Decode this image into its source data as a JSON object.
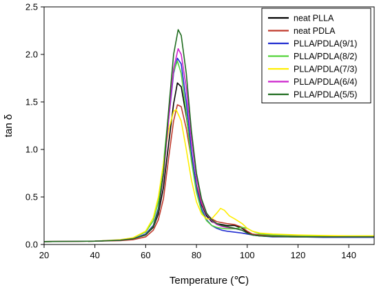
{
  "chart_data": {
    "type": "line",
    "title": "",
    "xlabel": "Temperature (℃)",
    "ylabel": "tan δ",
    "xlim": [
      20,
      150
    ],
    "ylim": [
      0,
      2.5
    ],
    "x_ticks": [
      20,
      40,
      60,
      80,
      100,
      120,
      140
    ],
    "y_ticks": [
      0.0,
      0.5,
      1.0,
      1.5,
      2.0,
      2.5
    ],
    "y_tick_labels": [
      "0.0",
      "0.5",
      "1.0",
      "1.5",
      "2.0",
      "2.5"
    ],
    "grid": false,
    "legend_position": "top-right",
    "series": [
      {
        "name": "neat PLLA",
        "color": "#000000",
        "points": [
          [
            20,
            0.03
          ],
          [
            40,
            0.035
          ],
          [
            50,
            0.045
          ],
          [
            55,
            0.06
          ],
          [
            60,
            0.1
          ],
          [
            63,
            0.18
          ],
          [
            65,
            0.32
          ],
          [
            67,
            0.6
          ],
          [
            69,
            1.05
          ],
          [
            71,
            1.48
          ],
          [
            72.5,
            1.7
          ],
          [
            74,
            1.66
          ],
          [
            76,
            1.35
          ],
          [
            78,
            0.95
          ],
          [
            80,
            0.62
          ],
          [
            82,
            0.42
          ],
          [
            84,
            0.3
          ],
          [
            86,
            0.24
          ],
          [
            88,
            0.22
          ],
          [
            90,
            0.21
          ],
          [
            92,
            0.2
          ],
          [
            95,
            0.2
          ],
          [
            98,
            0.17
          ],
          [
            100,
            0.13
          ],
          [
            102,
            0.1
          ],
          [
            105,
            0.09
          ],
          [
            110,
            0.085
          ],
          [
            120,
            0.08
          ],
          [
            130,
            0.08
          ],
          [
            140,
            0.08
          ],
          [
            150,
            0.08
          ]
        ]
      },
      {
        "name": "neat PDLA",
        "color": "#c0392b",
        "points": [
          [
            20,
            0.03
          ],
          [
            40,
            0.035
          ],
          [
            50,
            0.04
          ],
          [
            55,
            0.05
          ],
          [
            60,
            0.08
          ],
          [
            63,
            0.15
          ],
          [
            65,
            0.26
          ],
          [
            67,
            0.48
          ],
          [
            69,
            0.9
          ],
          [
            71,
            1.3
          ],
          [
            72.5,
            1.47
          ],
          [
            74,
            1.45
          ],
          [
            76,
            1.22
          ],
          [
            78,
            0.9
          ],
          [
            80,
            0.62
          ],
          [
            82,
            0.43
          ],
          [
            84,
            0.32
          ],
          [
            86,
            0.27
          ],
          [
            88,
            0.24
          ],
          [
            90,
            0.23
          ],
          [
            92,
            0.22
          ],
          [
            95,
            0.21
          ],
          [
            98,
            0.18
          ],
          [
            100,
            0.14
          ],
          [
            102,
            0.11
          ],
          [
            105,
            0.1
          ],
          [
            110,
            0.09
          ],
          [
            120,
            0.085
          ],
          [
            130,
            0.08
          ],
          [
            140,
            0.08
          ],
          [
            150,
            0.08
          ]
        ]
      },
      {
        "name": "PLLA/PDLA(9/1)",
        "color": "#1f2bd0",
        "points": [
          [
            20,
            0.03
          ],
          [
            40,
            0.035
          ],
          [
            50,
            0.045
          ],
          [
            55,
            0.06
          ],
          [
            60,
            0.11
          ],
          [
            63,
            0.2
          ],
          [
            65,
            0.38
          ],
          [
            67,
            0.75
          ],
          [
            69,
            1.3
          ],
          [
            71,
            1.8
          ],
          [
            72.5,
            1.96
          ],
          [
            74,
            1.9
          ],
          [
            76,
            1.5
          ],
          [
            78,
            0.98
          ],
          [
            80,
            0.6
          ],
          [
            82,
            0.38
          ],
          [
            84,
            0.26
          ],
          [
            86,
            0.2
          ],
          [
            88,
            0.17
          ],
          [
            90,
            0.15
          ],
          [
            92,
            0.14
          ],
          [
            95,
            0.13
          ],
          [
            98,
            0.12
          ],
          [
            100,
            0.11
          ],
          [
            102,
            0.1
          ],
          [
            105,
            0.09
          ],
          [
            110,
            0.08
          ],
          [
            120,
            0.08
          ],
          [
            130,
            0.075
          ],
          [
            140,
            0.075
          ],
          [
            150,
            0.075
          ]
        ]
      },
      {
        "name": "PLLA/PDLA(8/2)",
        "color": "#55d43a",
        "points": [
          [
            20,
            0.03
          ],
          [
            40,
            0.035
          ],
          [
            50,
            0.045
          ],
          [
            55,
            0.07
          ],
          [
            60,
            0.13
          ],
          [
            63,
            0.25
          ],
          [
            65,
            0.45
          ],
          [
            67,
            0.85
          ],
          [
            69,
            1.38
          ],
          [
            71,
            1.82
          ],
          [
            72.5,
            1.93
          ],
          [
            74,
            1.8
          ],
          [
            76,
            1.38
          ],
          [
            78,
            0.88
          ],
          [
            80,
            0.55
          ],
          [
            82,
            0.35
          ],
          [
            84,
            0.25
          ],
          [
            86,
            0.2
          ],
          [
            88,
            0.18
          ],
          [
            90,
            0.17
          ],
          [
            92,
            0.165
          ],
          [
            95,
            0.165
          ],
          [
            98,
            0.18
          ],
          [
            100,
            0.17
          ],
          [
            102,
            0.14
          ],
          [
            105,
            0.11
          ],
          [
            110,
            0.1
          ],
          [
            120,
            0.095
          ],
          [
            130,
            0.09
          ],
          [
            140,
            0.09
          ],
          [
            150,
            0.09
          ]
        ]
      },
      {
        "name": "PLLA/PDLA(7/3)",
        "color": "#ffee00",
        "points": [
          [
            20,
            0.03
          ],
          [
            40,
            0.035
          ],
          [
            50,
            0.05
          ],
          [
            55,
            0.07
          ],
          [
            60,
            0.14
          ],
          [
            63,
            0.28
          ],
          [
            65,
            0.5
          ],
          [
            67,
            0.85
          ],
          [
            69,
            1.2
          ],
          [
            71,
            1.4
          ],
          [
            72,
            1.42
          ],
          [
            74,
            1.3
          ],
          [
            76,
            1.0
          ],
          [
            78,
            0.68
          ],
          [
            80,
            0.45
          ],
          [
            82,
            0.32
          ],
          [
            84,
            0.27
          ],
          [
            86,
            0.27
          ],
          [
            88,
            0.33
          ],
          [
            89.5,
            0.38
          ],
          [
            91,
            0.36
          ],
          [
            93,
            0.3
          ],
          [
            95,
            0.27
          ],
          [
            98,
            0.22
          ],
          [
            100,
            0.17
          ],
          [
            102,
            0.14
          ],
          [
            105,
            0.12
          ],
          [
            110,
            0.11
          ],
          [
            120,
            0.1
          ],
          [
            130,
            0.095
          ],
          [
            140,
            0.09
          ],
          [
            150,
            0.09
          ]
        ]
      },
      {
        "name": "PLLA/PDLA(6/4)",
        "color": "#cc22cc",
        "points": [
          [
            20,
            0.03
          ],
          [
            40,
            0.035
          ],
          [
            50,
            0.045
          ],
          [
            55,
            0.06
          ],
          [
            60,
            0.1
          ],
          [
            63,
            0.19
          ],
          [
            65,
            0.35
          ],
          [
            67,
            0.72
          ],
          [
            69,
            1.3
          ],
          [
            71,
            1.85
          ],
          [
            72.8,
            2.06
          ],
          [
            74,
            2.0
          ],
          [
            76,
            1.65
          ],
          [
            78,
            1.1
          ],
          [
            80,
            0.7
          ],
          [
            82,
            0.45
          ],
          [
            84,
            0.32
          ],
          [
            86,
            0.25
          ],
          [
            88,
            0.21
          ],
          [
            90,
            0.19
          ],
          [
            92,
            0.18
          ],
          [
            95,
            0.17
          ],
          [
            98,
            0.15
          ],
          [
            100,
            0.12
          ],
          [
            102,
            0.1
          ],
          [
            105,
            0.09
          ],
          [
            110,
            0.085
          ],
          [
            120,
            0.08
          ],
          [
            130,
            0.08
          ],
          [
            140,
            0.08
          ],
          [
            150,
            0.08
          ]
        ]
      },
      {
        "name": "PLLA/PDLA(5/5)",
        "color": "#1e6b1e",
        "points": [
          [
            20,
            0.03
          ],
          [
            40,
            0.035
          ],
          [
            50,
            0.045
          ],
          [
            55,
            0.06
          ],
          [
            60,
            0.1
          ],
          [
            63,
            0.19
          ],
          [
            65,
            0.36
          ],
          [
            67,
            0.75
          ],
          [
            69,
            1.4
          ],
          [
            71,
            2.0
          ],
          [
            72.8,
            2.26
          ],
          [
            74,
            2.2
          ],
          [
            76,
            1.8
          ],
          [
            78,
            1.2
          ],
          [
            80,
            0.75
          ],
          [
            82,
            0.48
          ],
          [
            84,
            0.33
          ],
          [
            86,
            0.26
          ],
          [
            88,
            0.22
          ],
          [
            90,
            0.2
          ],
          [
            92,
            0.19
          ],
          [
            95,
            0.17
          ],
          [
            98,
            0.15
          ],
          [
            100,
            0.12
          ],
          [
            102,
            0.1
          ],
          [
            105,
            0.09
          ],
          [
            110,
            0.085
          ],
          [
            120,
            0.08
          ],
          [
            130,
            0.08
          ],
          [
            140,
            0.08
          ],
          [
            150,
            0.08
          ]
        ]
      }
    ]
  }
}
